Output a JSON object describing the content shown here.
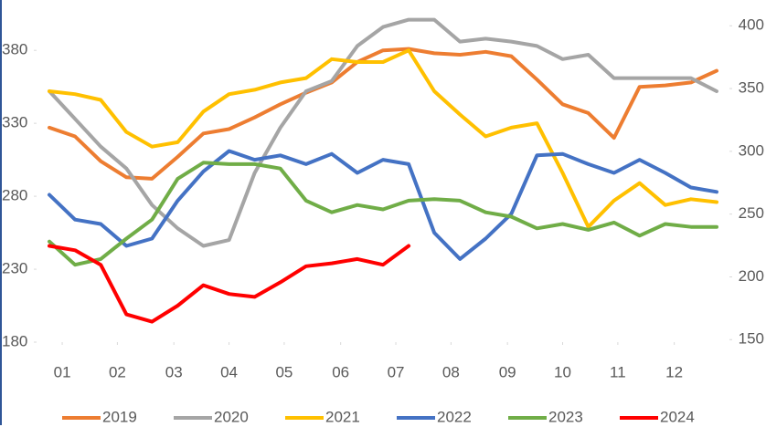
{
  "chart_data": {
    "type": "line",
    "x": [
      1,
      3,
      5,
      7,
      9,
      11,
      13,
      15,
      17,
      19,
      21,
      23,
      25,
      27,
      29,
      31,
      33,
      35,
      37,
      39,
      41,
      43,
      45,
      47,
      49,
      51,
      53
    ],
    "xlim": [
      0,
      54
    ],
    "xticks": [
      {
        "value": 2,
        "label": "01"
      },
      {
        "value": 6.3,
        "label": "02"
      },
      {
        "value": 10.7,
        "label": "03"
      },
      {
        "value": 15,
        "label": "04"
      },
      {
        "value": 19.3,
        "label": "05"
      },
      {
        "value": 23.7,
        "label": "06"
      },
      {
        "value": 28,
        "label": "07"
      },
      {
        "value": 32.3,
        "label": "08"
      },
      {
        "value": 36.7,
        "label": "09"
      },
      {
        "value": 41,
        "label": "10"
      },
      {
        "value": 45.3,
        "label": "11"
      },
      {
        "value": 49.7,
        "label": "12"
      }
    ],
    "ylim": [
      180,
      402
    ],
    "yticks": [
      180,
      230,
      280,
      330,
      380
    ],
    "y2lim": [
      148,
      406
    ],
    "y2ticks": [
      150,
      200,
      250,
      300,
      350,
      400
    ],
    "series": [
      {
        "name": "2019",
        "color": "#ed7d31",
        "values": [
          327,
          321,
          304,
          293,
          292,
          307,
          323,
          326,
          334,
          343,
          351,
          358,
          372,
          380,
          381,
          378,
          377,
          379,
          376,
          360,
          343,
          337,
          320,
          355,
          356,
          358,
          366
        ]
      },
      {
        "name": "2020",
        "color": "#a5a5a5",
        "values": [
          352,
          333,
          314,
          299,
          274,
          258,
          246,
          250,
          296,
          327,
          352,
          359,
          383,
          396,
          401,
          401,
          386,
          388,
          386,
          383,
          374,
          377,
          361,
          361,
          361,
          361,
          352
        ]
      },
      {
        "name": "2021",
        "color": "#ffc000",
        "values": [
          352,
          350,
          346,
          324,
          314,
          317,
          338,
          350,
          353,
          358,
          361,
          374,
          372,
          372,
          380,
          352,
          336,
          321,
          327,
          330,
          296,
          259,
          277,
          289,
          274,
          278,
          276
        ]
      },
      {
        "name": "2022",
        "color": "#4472c4",
        "values": [
          281,
          264,
          261,
          246,
          251,
          277,
          297,
          311,
          305,
          308,
          302,
          309,
          296,
          305,
          302,
          255,
          237,
          251,
          268,
          308,
          309,
          302,
          296,
          305,
          296,
          286,
          283
        ]
      },
      {
        "name": "2023",
        "color": "#70ad47",
        "values": [
          249,
          233,
          237,
          251,
          264,
          292,
          303,
          302,
          302,
          299,
          277,
          269,
          274,
          271,
          277,
          278,
          277,
          269,
          266,
          258,
          261,
          257,
          262,
          253,
          261,
          259,
          259
        ]
      },
      {
        "name": "2024",
        "color": "#ff0000",
        "values": [
          246,
          243,
          233,
          199,
          194,
          205,
          219,
          213,
          211,
          221,
          232,
          234,
          237,
          233,
          246,
          null,
          null,
          null,
          null,
          null,
          null,
          null,
          null,
          null,
          null,
          null,
          null
        ]
      }
    ]
  }
}
